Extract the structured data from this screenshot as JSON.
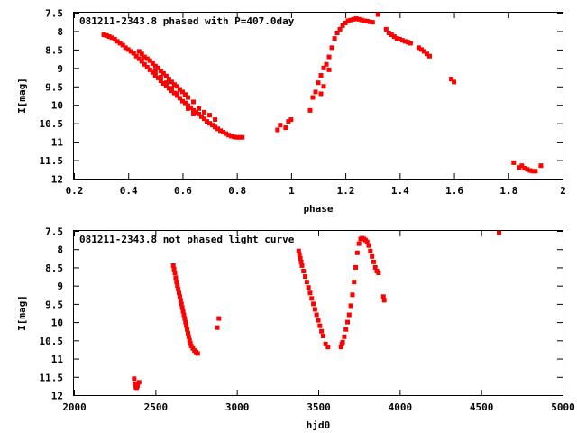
{
  "chart_data": [
    {
      "type": "scatter",
      "title": "081211-2343.8 phased with P=407.0day",
      "xlabel": "phase",
      "ylabel": "I[mag]",
      "xlim": [
        0.2,
        2.0
      ],
      "ylim": [
        7.5,
        12.0
      ],
      "y_inverted": true,
      "grid": false,
      "x_ticks": [
        "0.2",
        "0.4",
        "0.6",
        "0.8",
        "1",
        "1.2",
        "1.4",
        "1.6",
        "1.8",
        "2"
      ],
      "y_ticks": [
        "7.5",
        "8",
        "8.5",
        "9",
        "9.5",
        "10",
        "10.5",
        "11",
        "11.5",
        "12"
      ],
      "color": "#ff0000",
      "series": [
        {
          "values": [
            [
              0.31,
              8.1
            ],
            [
              0.32,
              8.12
            ],
            [
              0.33,
              8.15
            ],
            [
              0.34,
              8.18
            ],
            [
              0.35,
              8.22
            ],
            [
              0.36,
              8.28
            ],
            [
              0.37,
              8.33
            ],
            [
              0.38,
              8.38
            ],
            [
              0.39,
              8.45
            ],
            [
              0.4,
              8.5
            ],
            [
              0.41,
              8.55
            ],
            [
              0.42,
              8.6
            ],
            [
              0.43,
              8.68
            ],
            [
              0.44,
              8.75
            ],
            [
              0.45,
              8.82
            ],
            [
              0.46,
              8.9
            ],
            [
              0.47,
              8.98
            ],
            [
              0.48,
              9.05
            ],
            [
              0.49,
              9.12
            ],
            [
              0.5,
              9.2
            ],
            [
              0.51,
              9.27
            ],
            [
              0.52,
              9.35
            ],
            [
              0.53,
              9.42
            ],
            [
              0.54,
              9.48
            ],
            [
              0.55,
              9.55
            ],
            [
              0.56,
              9.62
            ],
            [
              0.57,
              9.68
            ],
            [
              0.58,
              9.75
            ],
            [
              0.59,
              9.82
            ],
            [
              0.6,
              9.9
            ],
            [
              0.61,
              9.95
            ],
            [
              0.62,
              10.02
            ],
            [
              0.63,
              10.08
            ],
            [
              0.64,
              10.15
            ],
            [
              0.65,
              10.2
            ],
            [
              0.66,
              10.25
            ],
            [
              0.67,
              10.32
            ],
            [
              0.68,
              10.38
            ],
            [
              0.69,
              10.45
            ],
            [
              0.7,
              10.5
            ],
            [
              0.71,
              10.55
            ],
            [
              0.72,
              10.6
            ],
            [
              0.73,
              10.65
            ],
            [
              0.74,
              10.7
            ],
            [
              0.75,
              10.74
            ],
            [
              0.76,
              10.78
            ],
            [
              0.77,
              10.82
            ],
            [
              0.78,
              10.85
            ],
            [
              0.79,
              10.87
            ],
            [
              0.8,
              10.88
            ],
            [
              0.81,
              10.88
            ],
            [
              0.82,
              10.88
            ],
            [
              0.44,
              8.55
            ],
            [
              0.45,
              8.62
            ],
            [
              0.46,
              8.7
            ],
            [
              0.47,
              8.75
            ],
            [
              0.48,
              8.8
            ],
            [
              0.49,
              8.88
            ],
            [
              0.5,
              8.95
            ],
            [
              0.51,
              9.0
            ],
            [
              0.52,
              9.08
            ],
            [
              0.53,
              9.15
            ],
            [
              0.54,
              9.22
            ],
            [
              0.55,
              9.3
            ],
            [
              0.56,
              9.38
            ],
            [
              0.57,
              9.45
            ],
            [
              0.58,
              9.5
            ],
            [
              0.59,
              9.58
            ],
            [
              0.6,
              9.65
            ],
            [
              0.61,
              9.72
            ],
            [
              0.62,
              9.8
            ],
            [
              0.64,
              9.92
            ],
            [
              0.66,
              10.1
            ],
            [
              0.68,
              10.2
            ],
            [
              0.7,
              10.28
            ],
            [
              0.72,
              10.4
            ],
            [
              0.5,
              9.1
            ],
            [
              0.52,
              9.25
            ],
            [
              0.54,
              9.4
            ],
            [
              0.56,
              9.55
            ],
            [
              0.58,
              9.7
            ],
            [
              0.62,
              10.1
            ],
            [
              0.64,
              10.25
            ],
            [
              0.95,
              10.68
            ],
            [
              0.96,
              10.55
            ],
            [
              0.98,
              10.62
            ],
            [
              0.99,
              10.45
            ],
            [
              1.0,
              10.4
            ],
            [
              1.07,
              10.15
            ],
            [
              1.08,
              9.8
            ],
            [
              1.09,
              9.65
            ],
            [
              1.1,
              9.4
            ],
            [
              1.11,
              9.2
            ],
            [
              1.12,
              9.0
            ],
            [
              1.13,
              8.9
            ],
            [
              1.14,
              8.7
            ],
            [
              1.15,
              8.45
            ],
            [
              1.16,
              8.2
            ],
            [
              1.17,
              8.05
            ],
            [
              1.18,
              7.95
            ],
            [
              1.19,
              7.85
            ],
            [
              1.2,
              7.78
            ],
            [
              1.21,
              7.72
            ],
            [
              1.22,
              7.7
            ],
            [
              1.23,
              7.68
            ],
            [
              1.24,
              7.66
            ],
            [
              1.25,
              7.68
            ],
            [
              1.26,
              7.7
            ],
            [
              1.27,
              7.72
            ],
            [
              1.28,
              7.73
            ],
            [
              1.29,
              7.75
            ],
            [
              1.3,
              7.76
            ],
            [
              1.11,
              9.7
            ],
            [
              1.12,
              9.5
            ],
            [
              1.14,
              9.05
            ],
            [
              1.32,
              7.55
            ],
            [
              1.35,
              7.95
            ],
            [
              1.36,
              8.05
            ],
            [
              1.37,
              8.1
            ],
            [
              1.38,
              8.15
            ],
            [
              1.39,
              8.2
            ],
            [
              1.4,
              8.22
            ],
            [
              1.41,
              8.25
            ],
            [
              1.42,
              8.28
            ],
            [
              1.43,
              8.3
            ],
            [
              1.44,
              8.33
            ],
            [
              1.47,
              8.45
            ],
            [
              1.48,
              8.5
            ],
            [
              1.49,
              8.55
            ],
            [
              1.5,
              8.62
            ],
            [
              1.51,
              8.68
            ],
            [
              1.59,
              9.3
            ],
            [
              1.6,
              9.38
            ],
            [
              1.82,
              11.57
            ],
            [
              1.84,
              11.7
            ],
            [
              1.85,
              11.65
            ],
            [
              1.86,
              11.72
            ],
            [
              1.87,
              11.75
            ],
            [
              1.88,
              11.78
            ],
            [
              1.89,
              11.8
            ],
            [
              1.9,
              11.8
            ],
            [
              1.92,
              11.65
            ]
          ]
        }
      ]
    },
    {
      "type": "scatter",
      "title": "081211-2343.8 not phased light curve",
      "xlabel": "hjd0",
      "ylabel": "I[mag]",
      "xlim": [
        2000,
        5000
      ],
      "ylim": [
        7.5,
        12.0
      ],
      "y_inverted": true,
      "grid": false,
      "x_ticks": [
        "2000",
        "2500",
        "3000",
        "3500",
        "4000",
        "4500",
        "5000"
      ],
      "y_ticks": [
        "7.5",
        "8",
        "8.5",
        "9",
        "9.5",
        "10",
        "10.5",
        "11",
        "11.5",
        "12"
      ],
      "color": "#ff0000",
      "series": [
        {
          "values": [
            [
              2370,
              11.55
            ],
            [
              2375,
              11.7
            ],
            [
              2380,
              11.78
            ],
            [
              2385,
              11.8
            ],
            [
              2390,
              11.75
            ],
            [
              2400,
              11.65
            ],
            [
              2610,
              8.45
            ],
            [
              2615,
              8.55
            ],
            [
              2620,
              8.65
            ],
            [
              2625,
              8.78
            ],
            [
              2630,
              8.9
            ],
            [
              2635,
              9.0
            ],
            [
              2640,
              9.1
            ],
            [
              2645,
              9.2
            ],
            [
              2650,
              9.3
            ],
            [
              2655,
              9.4
            ],
            [
              2660,
              9.5
            ],
            [
              2665,
              9.6
            ],
            [
              2670,
              9.7
            ],
            [
              2675,
              9.8
            ],
            [
              2680,
              9.9
            ],
            [
              2685,
              10.0
            ],
            [
              2690,
              10.1
            ],
            [
              2695,
              10.2
            ],
            [
              2700,
              10.3
            ],
            [
              2705,
              10.4
            ],
            [
              2710,
              10.5
            ],
            [
              2715,
              10.58
            ],
            [
              2720,
              10.65
            ],
            [
              2730,
              10.72
            ],
            [
              2740,
              10.78
            ],
            [
              2750,
              10.82
            ],
            [
              2760,
              10.86
            ],
            [
              2880,
              10.15
            ],
            [
              2890,
              9.9
            ],
            [
              3380,
              8.05
            ],
            [
              3385,
              8.15
            ],
            [
              3390,
              8.25
            ],
            [
              3395,
              8.35
            ],
            [
              3400,
              8.45
            ],
            [
              3410,
              8.6
            ],
            [
              3420,
              8.75
            ],
            [
              3430,
              8.9
            ],
            [
              3440,
              9.05
            ],
            [
              3450,
              9.2
            ],
            [
              3460,
              9.35
            ],
            [
              3470,
              9.5
            ],
            [
              3480,
              9.65
            ],
            [
              3490,
              9.8
            ],
            [
              3500,
              9.95
            ],
            [
              3510,
              10.1
            ],
            [
              3520,
              10.25
            ],
            [
              3530,
              10.38
            ],
            [
              3545,
              10.6
            ],
            [
              3560,
              10.68
            ],
            [
              3640,
              10.68
            ],
            [
              3645,
              10.6
            ],
            [
              3650,
              10.55
            ],
            [
              3660,
              10.4
            ],
            [
              3670,
              10.2
            ],
            [
              3680,
              10.0
            ],
            [
              3690,
              9.8
            ],
            [
              3700,
              9.55
            ],
            [
              3710,
              9.25
            ],
            [
              3720,
              8.9
            ],
            [
              3730,
              8.5
            ],
            [
              3740,
              8.1
            ],
            [
              3750,
              7.85
            ],
            [
              3760,
              7.72
            ],
            [
              3770,
              7.7
            ],
            [
              3780,
              7.72
            ],
            [
              3790,
              7.75
            ],
            [
              3800,
              7.8
            ],
            [
              3810,
              7.9
            ],
            [
              3820,
              8.05
            ],
            [
              3830,
              8.2
            ],
            [
              3840,
              8.35
            ],
            [
              3850,
              8.5
            ],
            [
              3860,
              8.6
            ],
            [
              3870,
              8.65
            ],
            [
              3900,
              9.3
            ],
            [
              3905,
              9.4
            ],
            [
              4610,
              7.55
            ]
          ]
        }
      ]
    }
  ]
}
